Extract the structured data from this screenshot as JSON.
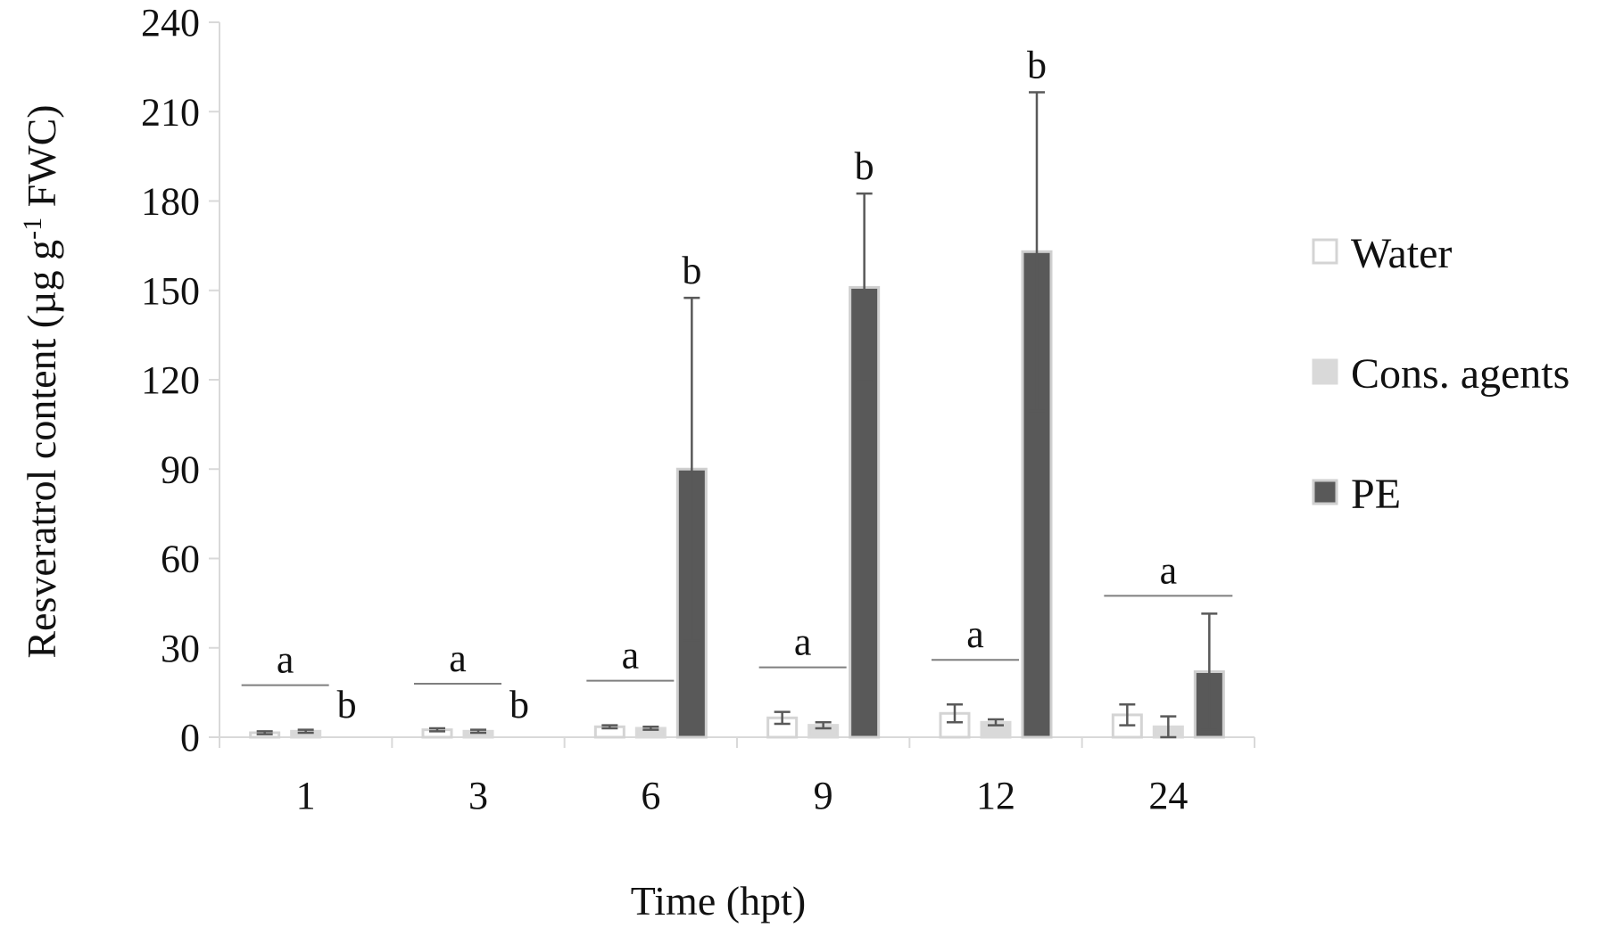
{
  "chart_data": {
    "type": "bar",
    "title": "",
    "xlabel": "Time (hpt)",
    "ylabel": {
      "main": "Resveratrol content (µg g",
      "sup": "-1",
      "tail": " FWC)"
    },
    "categories": [
      "1",
      "3",
      "6",
      "9",
      "12",
      "24"
    ],
    "yticks": [
      "0",
      "30",
      "60",
      "90",
      "120",
      "150",
      "180",
      "210",
      "240"
    ],
    "ylim": [
      0,
      240
    ],
    "grid": false,
    "legend_position": "right",
    "series": [
      {
        "name": "Water",
        "values": [
          1.5,
          2.5,
          3.5,
          6.5,
          8.0,
          7.5
        ],
        "errors": [
          0.5,
          0.5,
          0.5,
          2.0,
          3.0,
          3.5
        ],
        "fill": "#ffffff",
        "stroke": "#d4d4d4"
      },
      {
        "name": "Cons. agents",
        "values": [
          2.0,
          2.0,
          3.0,
          4.0,
          5.0,
          3.5
        ],
        "errors": [
          0.5,
          0.5,
          0.5,
          1.0,
          1.0,
          3.5
        ],
        "fill": "#d9d9d9",
        "stroke": "#d9d9d9"
      },
      {
        "name": "PE",
        "values": [
          0,
          0,
          90,
          151,
          163,
          22
        ],
        "errors": [
          0,
          0,
          57.5,
          31.5,
          53.5,
          19.5
        ],
        "fill": "#595959",
        "stroke": "#cfcfcf"
      }
    ],
    "significance": [
      {
        "group": "a",
        "pe": "b"
      },
      {
        "group": "a",
        "pe": "b"
      },
      {
        "group": "a",
        "pe": "b"
      },
      {
        "group": "a",
        "pe": "b"
      },
      {
        "group": "a",
        "pe": "b"
      },
      {
        "group": "a",
        "pe": ""
      }
    ],
    "colors": {
      "axis": "#d9d9d9",
      "errorbar": "#595959",
      "sigline": "#7f7f7f"
    }
  }
}
